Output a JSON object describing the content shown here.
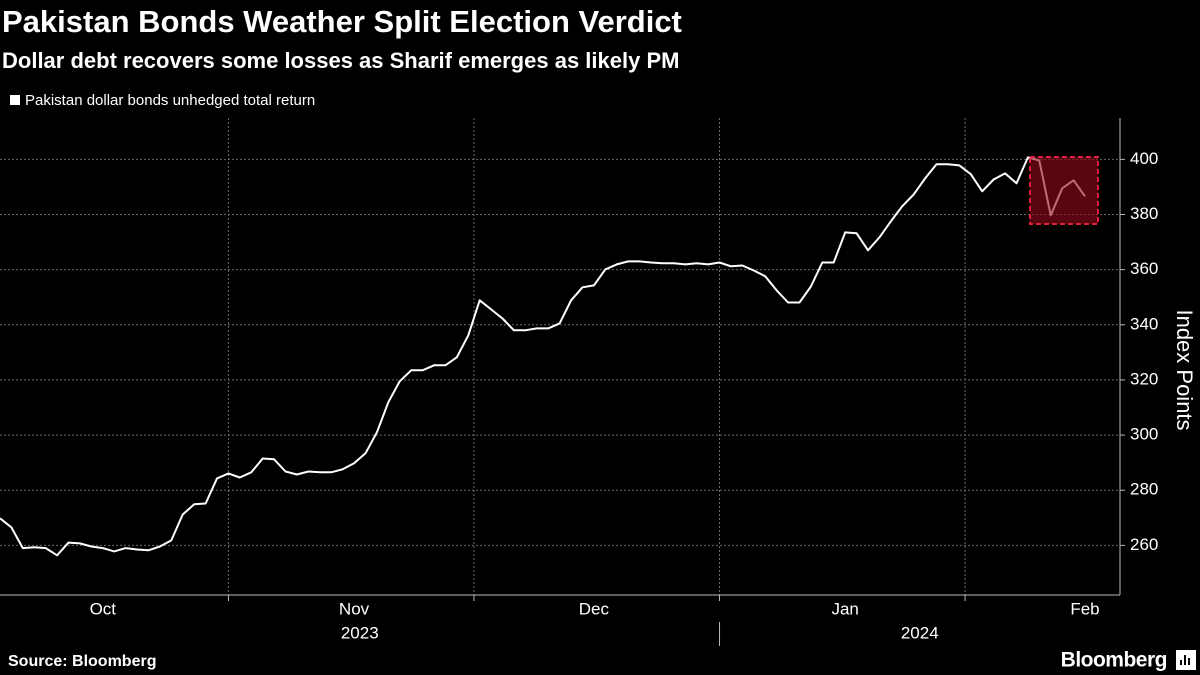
{
  "chart_data": {
    "type": "line",
    "title": "Pakistan Bonds Weather Split Election Verdict",
    "subtitle": "Dollar debt recovers some losses as Sharif emerges as likely PM",
    "y_label": "Index Points",
    "source": "Source: Bloomberg",
    "brand": "Bloomberg",
    "year_labels": [
      "2023",
      "2024"
    ],
    "categories": [
      null,
      null,
      null,
      null,
      null,
      null,
      null,
      null,
      null,
      "Oct",
      null,
      null,
      null,
      null,
      null,
      null,
      null,
      null,
      null,
      null,
      null,
      null,
      null,
      null,
      null,
      null,
      null,
      null,
      null,
      null,
      null,
      "Nov",
      null,
      null,
      null,
      null,
      null,
      null,
      null,
      null,
      null,
      null,
      null,
      null,
      null,
      null,
      null,
      null,
      null,
      null,
      null,
      null,
      "Dec",
      null,
      null,
      null,
      null,
      null,
      null,
      null,
      null,
      null,
      null,
      null,
      null,
      null,
      null,
      null,
      null,
      null,
      null,
      null,
      null,
      null,
      "Jan",
      null,
      null,
      null,
      null,
      null,
      null,
      null,
      null,
      null,
      null,
      null,
      null,
      null,
      null,
      null,
      null,
      null,
      null,
      null,
      null,
      "Feb"
    ],
    "series": [
      {
        "name": "Pakistan dollar bonds unhedged total return",
        "color": "#ffffff",
        "values": [
          269.8,
          266.5,
          259,
          259.3,
          259,
          256.4,
          261,
          260.7,
          259.6,
          259,
          257.8,
          259,
          258.5,
          258.2,
          259.6,
          261.8,
          271.2,
          274.9,
          275.2,
          284.3,
          286.1,
          284.6,
          286.5,
          291.5,
          291.2,
          286.8,
          285.7,
          286.8,
          286.5,
          286.5,
          287.6,
          289.8,
          293.4,
          301,
          311.9,
          319.5,
          323.5,
          323.5,
          325.3,
          325.3,
          328.2,
          336.2,
          348.9,
          345.6,
          342.3,
          338,
          338,
          338.7,
          338.7,
          340.5,
          348.9,
          353.6,
          354.3,
          360.1,
          361.9,
          363,
          363,
          362.6,
          362.3,
          362.3,
          361.9,
          362.3,
          361.9,
          362.6,
          361.2,
          361.5,
          359.7,
          357.6,
          352.5,
          348.1,
          348.1,
          353.9,
          362.6,
          362.6,
          373.5,
          373.2,
          367,
          371.7,
          377.5,
          383,
          387.3,
          393.1,
          398.2,
          398.2,
          397.8,
          394.6,
          388.4,
          392.7,
          394.9,
          391.3,
          400.7,
          399.6,
          379.7,
          389.5,
          392.4,
          386.6
        ]
      }
    ],
    "ylim": [
      242,
      415
    ],
    "yticks": [
      260,
      280,
      300,
      320,
      340,
      360,
      380,
      400
    ],
    "grid": true
  }
}
